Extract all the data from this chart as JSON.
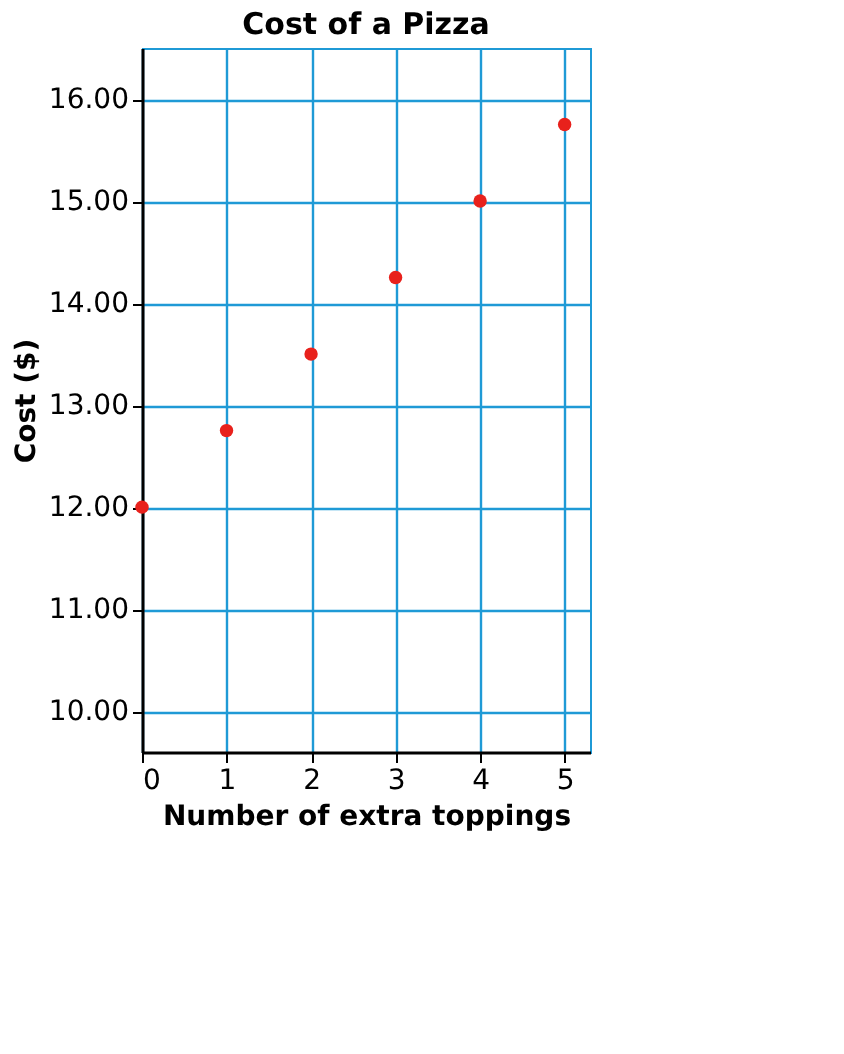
{
  "chart_data": {
    "type": "scatter",
    "title": "Cost of a Pizza",
    "xlabel": "Number of extra toppings",
    "ylabel": "Cost ($)",
    "x": [
      0,
      1,
      2,
      3,
      4,
      5
    ],
    "series": [
      {
        "color": "#e8211c",
        "values": [
          12.0,
          12.75,
          13.5,
          14.25,
          15.0,
          15.75
        ]
      }
    ],
    "xlim": [
      0,
      5.3
    ],
    "xticks": [
      0,
      1,
      2,
      3,
      4,
      5
    ],
    "ylim": [
      9.6,
      16.5
    ],
    "yticks": [
      {
        "value": 10,
        "label": "10.00"
      },
      {
        "value": 11,
        "label": "11.00"
      },
      {
        "value": 12,
        "label": "12.00"
      },
      {
        "value": 13,
        "label": "13.00"
      },
      {
        "value": 14,
        "label": "14.00"
      },
      {
        "value": 15,
        "label": "15.00"
      },
      {
        "value": 16,
        "label": "16.00"
      }
    ],
    "grid": true,
    "marker": "circle",
    "legend": false
  }
}
